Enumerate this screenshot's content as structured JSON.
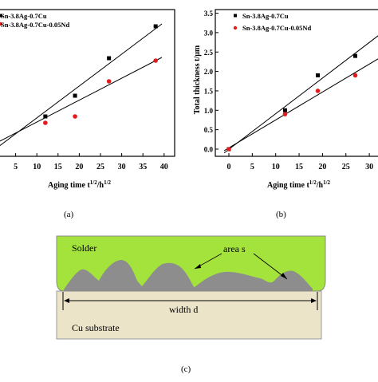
{
  "panels": {
    "a": {
      "caption": "(a)",
      "xlabel_main": "Aging time t",
      "xlabel_sup1": "1/2",
      "xlabel_mid": "/h",
      "xlabel_sup2": "1/2",
      "legend": [
        "Sn-3.8Ag-0.7Cu",
        "Sn-3.8Ag-0.7Cu-0.05Nd"
      ]
    },
    "b": {
      "caption": "(b)",
      "ylabel": "Total thickness t/μm",
      "xlabel_main": "Aging time t",
      "xlabel_sup1": "1/2",
      "xlabel_mid": "/h",
      "xlabel_sup2": "1/2",
      "legend": [
        "Sn-3.8Ag-0.7Cu",
        "Sn-3.8Ag-0.7Cu-0.05Nd"
      ]
    },
    "c": {
      "caption": "(c)",
      "solder_label": "Solder",
      "area_label": "area s",
      "width_label": "width d",
      "substrate_label": "Cu substrate",
      "colors": {
        "solder": "#a4e33c",
        "substrate": "#ece4c9",
        "imc": "#8d8d8d"
      }
    }
  },
  "chart_data": [
    {
      "type": "scatter",
      "xlim": [
        0,
        40
      ],
      "xticks": [
        5,
        10,
        15,
        20,
        25,
        30,
        35,
        40
      ],
      "xtick_labels": [
        "5",
        "10",
        "15",
        "20",
        "25",
        "30",
        "35",
        "40"
      ],
      "series": [
        {
          "name": "Sn-3.8Ag-0.7Cu",
          "marker": "square",
          "color": "#000000",
          "x": [
            12,
            19,
            27,
            38
          ]
        },
        {
          "name": "Sn-3.8Ag-0.7Cu-0.05Nd",
          "marker": "circle",
          "color": "#e01c1c",
          "x": [
            12,
            19,
            27,
            38
          ]
        }
      ]
    },
    {
      "type": "scatter",
      "xlim": [
        -2,
        33
      ],
      "ylim": [
        -0.25,
        3.5
      ],
      "xticks": [
        0,
        5,
        10,
        15,
        20,
        25,
        30
      ],
      "yticks": [
        0.0,
        0.5,
        1.0,
        1.5,
        2.0,
        2.5,
        3.0,
        3.5
      ],
      "ytick_labels": [
        "0.0",
        "0.5",
        "1.0",
        "1.5",
        "2.0",
        "2.5",
        "3.0",
        "3.5"
      ],
      "xtick_labels": [
        "0",
        "5",
        "10",
        "15",
        "20",
        "25",
        "30"
      ],
      "series": [
        {
          "name": "Sn-3.8Ag-0.7Cu",
          "marker": "square",
          "color": "#000000",
          "x": [
            0,
            12,
            19,
            27
          ],
          "y": [
            0.0,
            1.0,
            1.9,
            2.4
          ]
        },
        {
          "name": "Sn-3.8Ag-0.7Cu-0.05Nd",
          "marker": "circle",
          "color": "#e01c1c",
          "x": [
            0,
            12,
            19,
            27
          ],
          "y": [
            0.0,
            0.9,
            1.5,
            1.9
          ]
        }
      ]
    }
  ]
}
